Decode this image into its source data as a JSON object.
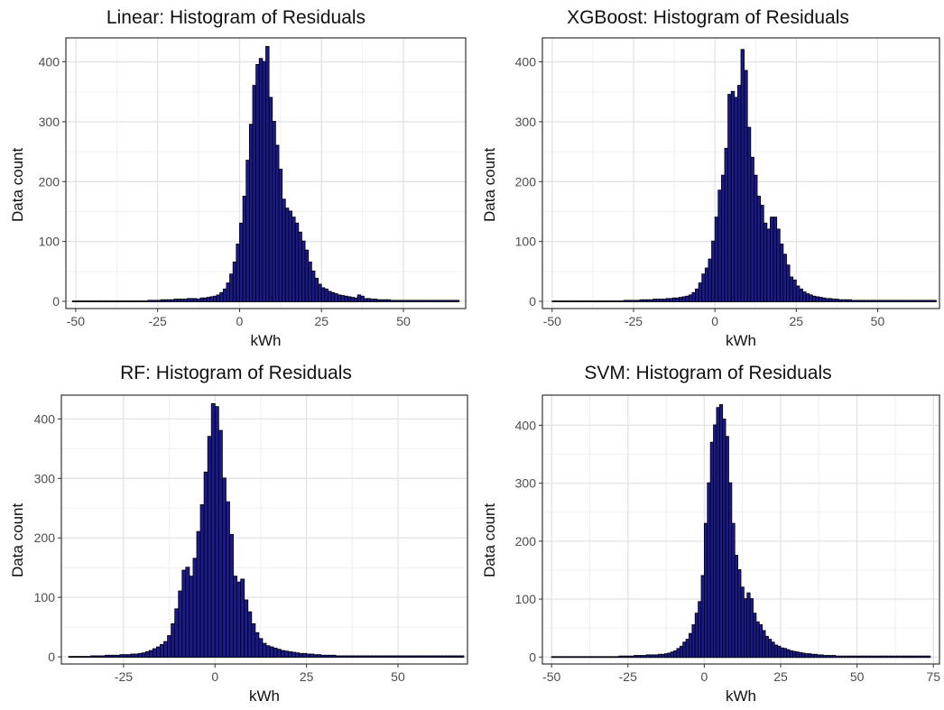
{
  "chart_data": [
    {
      "type": "bar",
      "title": "Linear: Histogram of Residuals",
      "xlabel": "kWh",
      "ylabel": "Data count",
      "xlim": [
        -53,
        69
      ],
      "ylim": [
        -12,
        440
      ],
      "xticks": [
        -50,
        -25,
        0,
        25,
        50
      ],
      "yticks": [
        0,
        100,
        200,
        300,
        400
      ],
      "grid": true,
      "binwidth": 1,
      "x_start": -51,
      "values": [
        0,
        0,
        0,
        0,
        0,
        0,
        0,
        0,
        0,
        0,
        0,
        0,
        0,
        0,
        0,
        0,
        0,
        0,
        0,
        0,
        0,
        0,
        0,
        1,
        1,
        1,
        1,
        2,
        2,
        2,
        2,
        3,
        3,
        3,
        3,
        4,
        4,
        4,
        3,
        5,
        5,
        6,
        7,
        8,
        10,
        14,
        20,
        30,
        45,
        65,
        95,
        130,
        175,
        235,
        295,
        360,
        395,
        405,
        400,
        425,
        340,
        300,
        260,
        220,
        170,
        155,
        150,
        140,
        130,
        115,
        100,
        85,
        65,
        50,
        38,
        28,
        22,
        20,
        16,
        14,
        12,
        10,
        9,
        8,
        7,
        6,
        5,
        10,
        8,
        4,
        4,
        3,
        3,
        2,
        2,
        2,
        2,
        1,
        1,
        1,
        1,
        1,
        1,
        1,
        1,
        1,
        1,
        1,
        1,
        1,
        1,
        1,
        1,
        1,
        1,
        1,
        1,
        1
      ]
    },
    {
      "type": "bar",
      "title": "XGBoost: Histogram of Residuals",
      "xlabel": "kWh",
      "ylabel": "Data count",
      "xlim": [
        -53,
        69
      ],
      "ylim": [
        -12,
        440
      ],
      "xticks": [
        -50,
        -25,
        0,
        25,
        50
      ],
      "yticks": [
        0,
        100,
        200,
        300,
        400
      ],
      "grid": true,
      "binwidth": 1,
      "x_start": -50,
      "values": [
        0,
        0,
        0,
        0,
        0,
        0,
        0,
        0,
        0,
        0,
        0,
        0,
        0,
        0,
        0,
        0,
        0,
        0,
        0,
        0,
        0,
        0,
        1,
        1,
        1,
        1,
        1,
        2,
        2,
        2,
        2,
        3,
        3,
        3,
        3,
        4,
        4,
        5,
        5,
        6,
        7,
        8,
        10,
        14,
        20,
        30,
        45,
        55,
        70,
        100,
        140,
        185,
        210,
        255,
        345,
        350,
        340,
        360,
        420,
        385,
        290,
        240,
        210,
        175,
        160,
        130,
        120,
        140,
        140,
        120,
        95,
        78,
        60,
        40,
        35,
        25,
        20,
        15,
        12,
        10,
        8,
        7,
        6,
        5,
        4,
        4,
        3,
        3,
        2,
        2,
        2,
        2,
        1,
        1,
        1,
        1,
        1,
        1,
        1,
        1,
        1,
        1,
        1,
        1,
        1,
        1,
        1,
        1,
        1,
        1,
        1,
        1,
        1,
        1,
        1,
        1,
        1,
        1
      ]
    },
    {
      "type": "bar",
      "title": "RF: Histogram of Residuals",
      "xlabel": "kWh",
      "ylabel": "Data count",
      "xlim": [
        -42,
        69
      ],
      "ylim": [
        -12,
        440
      ],
      "xticks": [
        -25,
        0,
        25,
        50
      ],
      "yticks": [
        0,
        100,
        200,
        300,
        400
      ],
      "grid": true,
      "binwidth": 1,
      "x_start": -40,
      "values": [
        0,
        0,
        0,
        0,
        0,
        0,
        1,
        1,
        1,
        1,
        2,
        2,
        2,
        2,
        3,
        3,
        3,
        4,
        4,
        5,
        6,
        8,
        10,
        13,
        16,
        20,
        25,
        35,
        55,
        80,
        110,
        145,
        150,
        135,
        165,
        210,
        255,
        310,
        370,
        425,
        420,
        380,
        300,
        260,
        205,
        135,
        125,
        130,
        95,
        75,
        55,
        40,
        30,
        22,
        18,
        16,
        14,
        12,
        10,
        9,
        8,
        7,
        6,
        5,
        5,
        4,
        4,
        3,
        3,
        2,
        2,
        2,
        2,
        1,
        1,
        1,
        1,
        1,
        1,
        1,
        1,
        1,
        1,
        1,
        1,
        1,
        1,
        1,
        1,
        1,
        1,
        1,
        1,
        1,
        1,
        1,
        1,
        1,
        1,
        1,
        1,
        1,
        1,
        1,
        1,
        1,
        1,
        1
      ]
    },
    {
      "type": "bar",
      "title": "SVM: Histogram of Residuals",
      "xlabel": "kWh",
      "ylabel": "Data count",
      "xlim": [
        -53,
        77
      ],
      "ylim": [
        -12,
        452
      ],
      "xticks": [
        -50,
        -25,
        0,
        25,
        50,
        75
      ],
      "yticks": [
        0,
        100,
        200,
        300,
        400
      ],
      "grid": true,
      "binwidth": 1,
      "x_start": -50,
      "values": [
        0,
        0,
        0,
        0,
        0,
        0,
        0,
        0,
        0,
        0,
        0,
        0,
        0,
        0,
        0,
        0,
        0,
        0,
        0,
        0,
        0,
        0,
        1,
        1,
        1,
        1,
        1,
        2,
        2,
        2,
        2,
        3,
        3,
        3,
        3,
        4,
        4,
        5,
        6,
        8,
        10,
        14,
        18,
        25,
        30,
        40,
        55,
        75,
        95,
        140,
        230,
        300,
        370,
        400,
        430,
        435,
        410,
        380,
        300,
        230,
        175,
        150,
        120,
        100,
        110,
        100,
        75,
        60,
        55,
        45,
        35,
        30,
        25,
        20,
        18,
        15,
        14,
        12,
        10,
        9,
        8,
        7,
        6,
        5,
        5,
        4,
        4,
        3,
        3,
        2,
        2,
        2,
        2,
        1,
        1,
        1,
        1,
        1,
        1,
        1,
        1,
        1,
        1,
        1,
        1,
        1,
        1,
        1,
        1,
        1,
        1,
        1,
        1,
        1,
        1,
        1,
        1,
        1,
        1,
        1,
        1,
        1,
        1,
        1
      ]
    }
  ]
}
